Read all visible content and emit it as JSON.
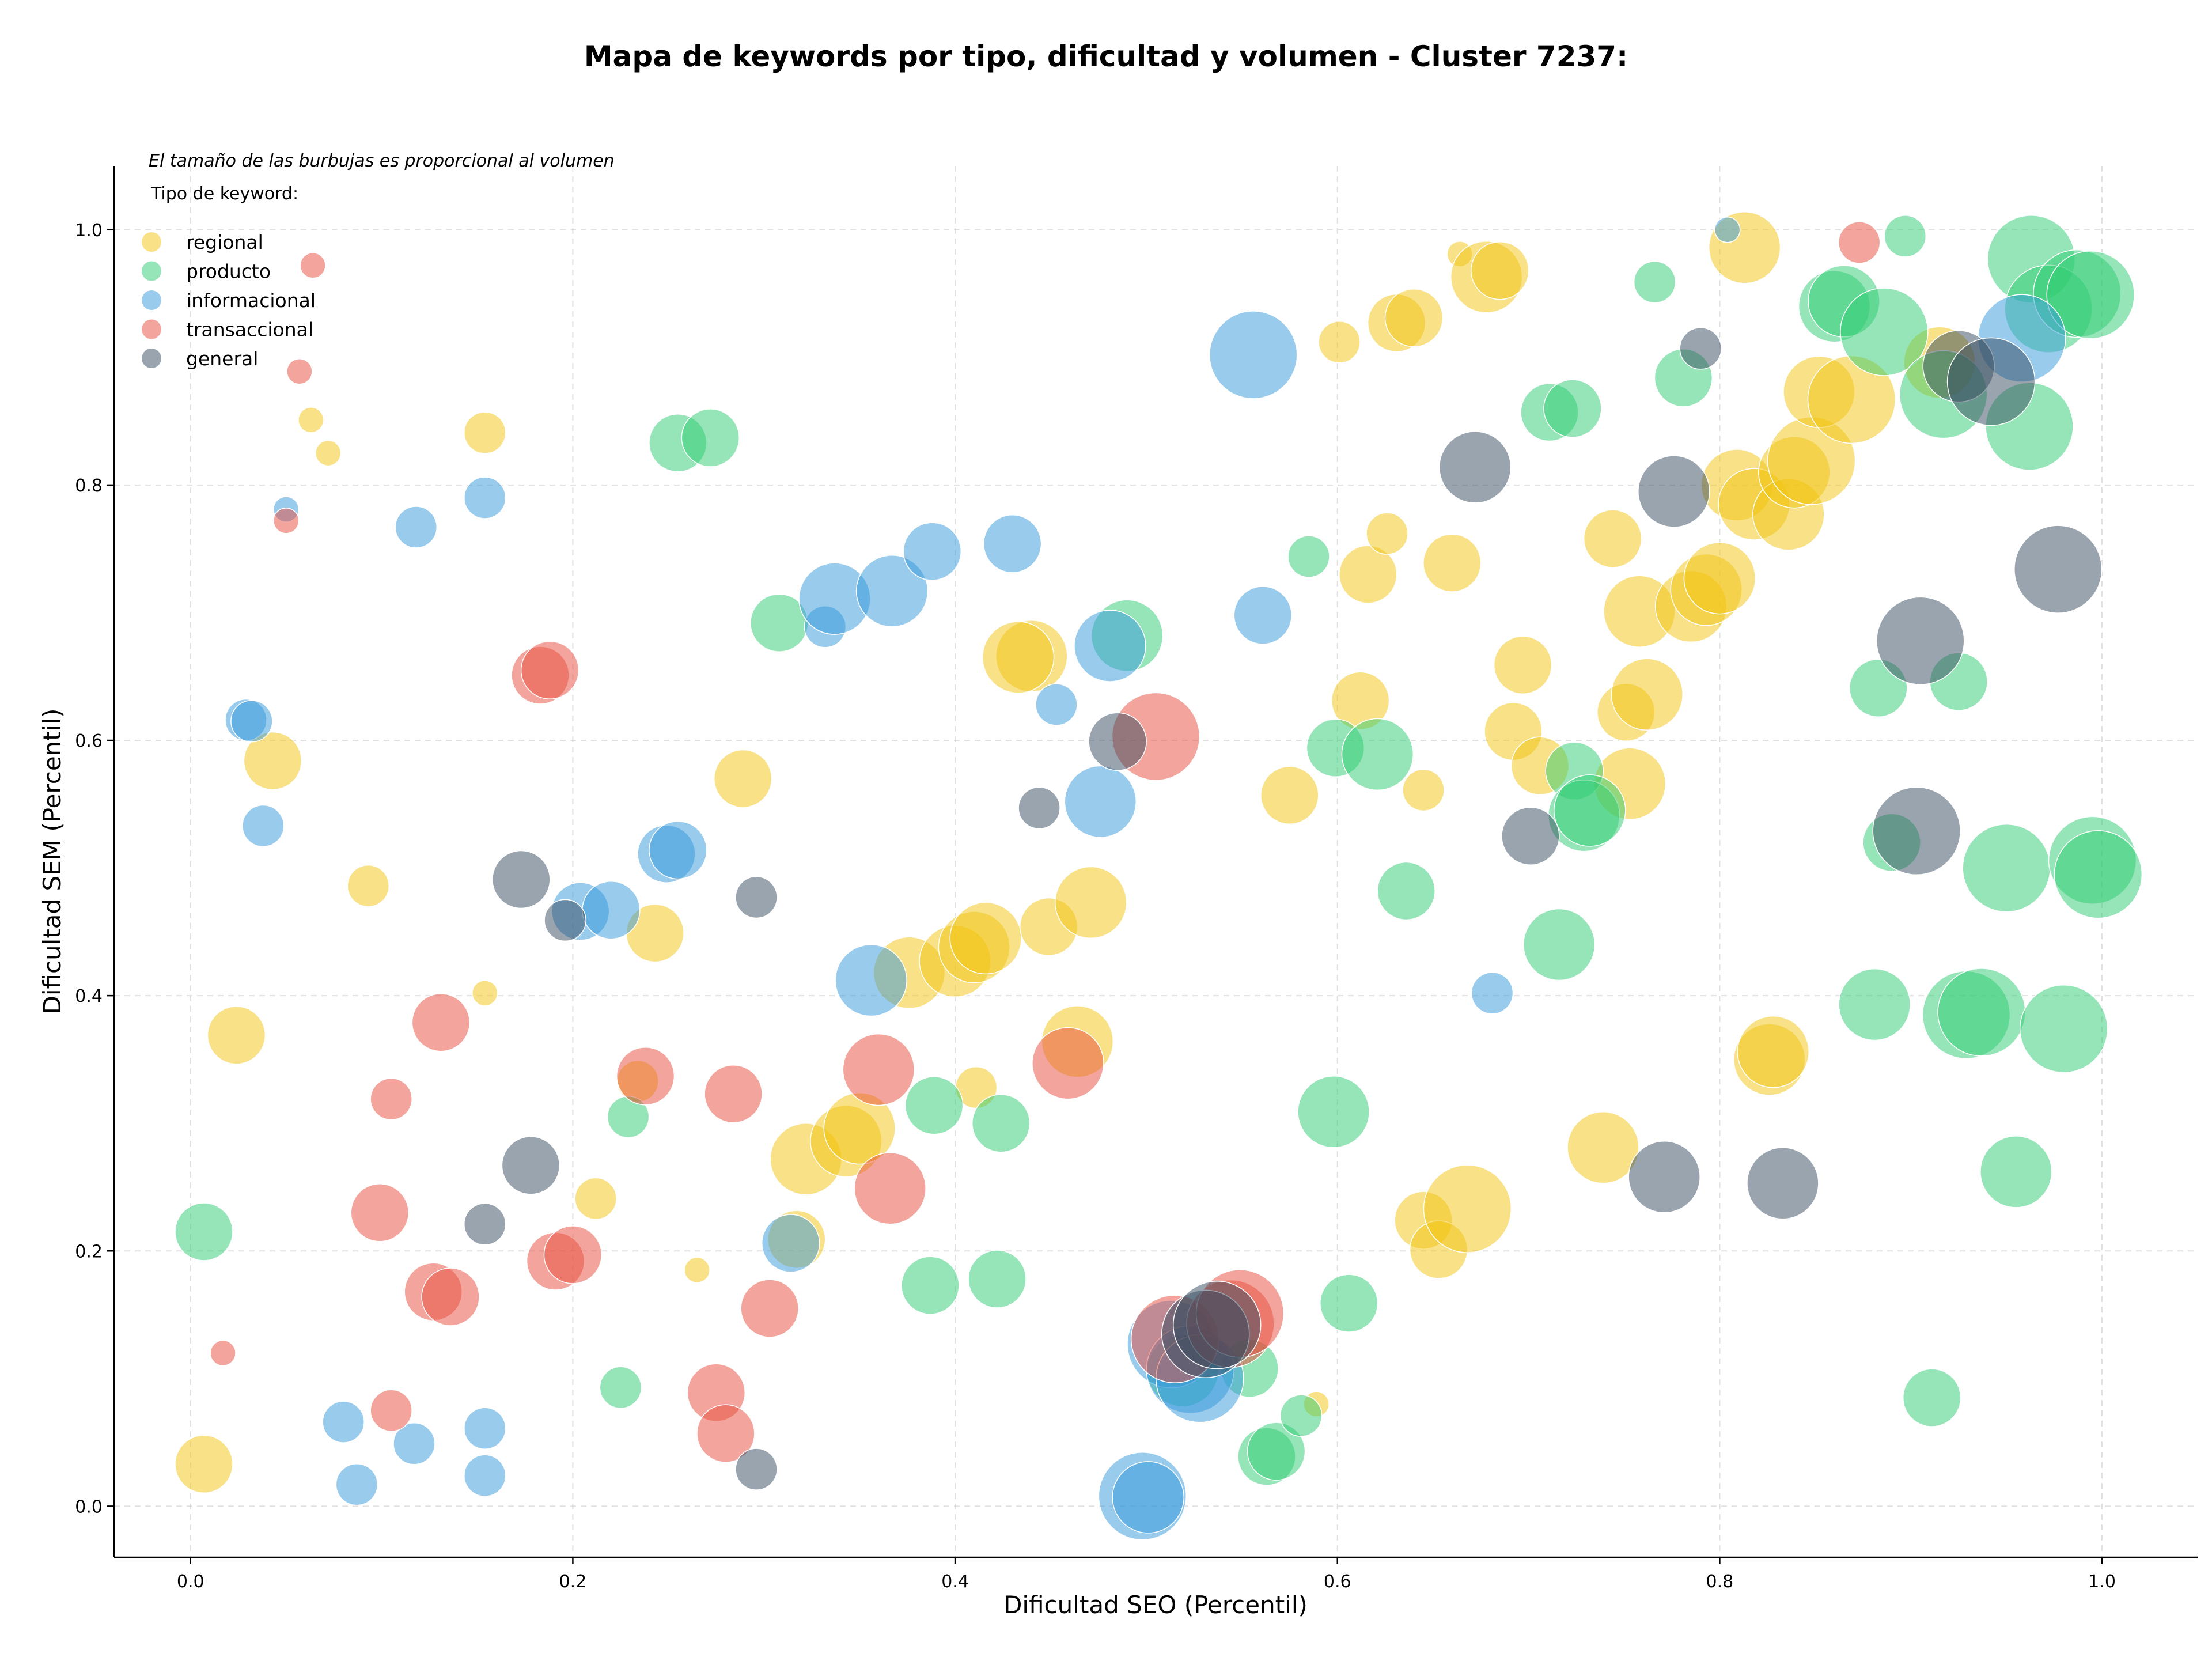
{
  "chart_data": {
    "type": "scatter",
    "title": "Mapa de keywords por tipo, dificultad y volumen - Cluster 7237:",
    "subtitle": "El tamaño de las burbujas es proporcional al volumen",
    "xlabel": "Dificultad SEO (Percentil)",
    "ylabel": "Dificultad SEM (Percentil)",
    "xlim": [
      -0.04,
      1.05
    ],
    "ylim": [
      -0.04,
      1.05
    ],
    "xticks": [
      "0.0",
      "0.2",
      "0.4",
      "0.6",
      "0.8",
      "1.0"
    ],
    "yticks": [
      "0.0",
      "0.2",
      "0.4",
      "0.6",
      "0.8",
      "1.0"
    ],
    "grid": true,
    "legend": {
      "title": "Tipo de keyword:",
      "placement": "top-left"
    },
    "series": [
      {
        "name": "regional",
        "color": "#f1c40f",
        "points": [
          [
            0.007,
            0.033,
            3
          ],
          [
            0.024,
            0.369,
            3
          ],
          [
            0.043,
            0.584,
            3
          ],
          [
            0.063,
            0.851,
            1
          ],
          [
            0.072,
            0.825,
            1
          ],
          [
            0.093,
            0.486,
            2
          ],
          [
            0.154,
            0.841,
            2
          ],
          [
            0.154,
            0.402,
            1
          ],
          [
            0.212,
            0.241,
            2
          ],
          [
            0.234,
            0.333,
            2
          ],
          [
            0.243,
            0.449,
            3
          ],
          [
            0.265,
            0.185,
            1
          ],
          [
            0.289,
            0.57,
            3
          ],
          [
            0.317,
            0.209,
            3
          ],
          [
            0.322,
            0.272,
            4
          ],
          [
            0.343,
            0.286,
            4
          ],
          [
            0.35,
            0.296,
            4
          ],
          [
            0.376,
            0.418,
            4
          ],
          [
            0.4,
            0.427,
            4
          ],
          [
            0.41,
            0.438,
            4
          ],
          [
            0.416,
            0.445,
            4
          ],
          [
            0.411,
            0.328,
            2
          ],
          [
            0.44,
            0.666,
            4
          ],
          [
            0.433,
            0.665,
            4
          ],
          [
            0.449,
            0.454,
            3
          ],
          [
            0.464,
            0.364,
            4
          ],
          [
            0.471,
            0.473,
            4
          ],
          [
            0.575,
            0.557,
            3
          ],
          [
            0.601,
            0.912,
            2
          ],
          [
            0.612,
            0.631,
            3
          ],
          [
            0.616,
            0.73,
            3
          ],
          [
            0.626,
            0.762,
            2
          ],
          [
            0.631,
            0.927,
            3
          ],
          [
            0.64,
            0.931,
            3
          ],
          [
            0.645,
            0.561,
            2
          ],
          [
            0.66,
            0.739,
            3
          ],
          [
            0.664,
            0.981,
            1
          ],
          [
            0.678,
            0.963,
            4
          ],
          [
            0.685,
            0.968,
            3
          ],
          [
            0.692,
            0.607,
            3
          ],
          [
            0.697,
            0.659,
            3
          ],
          [
            0.706,
            0.58,
            3
          ],
          [
            0.645,
            0.224,
            3
          ],
          [
            0.653,
            0.201,
            3
          ],
          [
            0.668,
            0.233,
            5
          ],
          [
            0.739,
            0.281,
            4
          ],
          [
            0.744,
            0.758,
            3
          ],
          [
            0.751,
            0.622,
            3
          ],
          [
            0.753,
            0.566,
            4
          ],
          [
            0.758,
            0.701,
            4
          ],
          [
            0.762,
            0.636,
            4
          ],
          [
            0.785,
            0.705,
            4
          ],
          [
            0.793,
            0.718,
            4
          ],
          [
            0.8,
            0.727,
            4
          ],
          [
            0.809,
            0.8,
            4
          ],
          [
            0.813,
            0.986,
            4
          ],
          [
            0.818,
            0.785,
            4
          ],
          [
            0.826,
            0.35,
            4
          ],
          [
            0.828,
            0.356,
            4
          ],
          [
            0.836,
            0.777,
            4
          ],
          [
            0.839,
            0.81,
            4
          ],
          [
            0.848,
            0.819,
            5
          ],
          [
            0.852,
            0.873,
            4
          ],
          [
            0.869,
            0.867,
            5
          ],
          [
            0.915,
            0.896,
            4
          ],
          [
            0.589,
            0.08,
            1
          ]
        ]
      },
      {
        "name": "producto",
        "color": "#2ecc71",
        "points": [
          [
            0.007,
            0.215,
            3
          ],
          [
            0.225,
            0.093,
            2
          ],
          [
            0.229,
            0.305,
            2
          ],
          [
            0.255,
            0.833,
            3
          ],
          [
            0.272,
            0.837,
            3
          ],
          [
            0.308,
            0.692,
            3
          ],
          [
            0.387,
            0.173,
            3
          ],
          [
            0.389,
            0.314,
            3
          ],
          [
            0.422,
            0.178,
            3
          ],
          [
            0.424,
            0.3,
            3
          ],
          [
            0.49,
            0.682,
            4
          ],
          [
            0.519,
            0.106,
            4
          ],
          [
            0.554,
            0.108,
            3
          ],
          [
            0.563,
            0.039,
            3
          ],
          [
            0.568,
            0.043,
            3
          ],
          [
            0.581,
            0.071,
            2
          ],
          [
            0.585,
            0.744,
            2
          ],
          [
            0.598,
            0.309,
            4
          ],
          [
            0.599,
            0.594,
            3
          ],
          [
            0.606,
            0.159,
            3
          ],
          [
            0.621,
            0.589,
            4
          ],
          [
            0.636,
            0.482,
            3
          ],
          [
            0.711,
            0.857,
            3
          ],
          [
            0.716,
            0.44,
            4
          ],
          [
            0.723,
            0.86,
            3
          ],
          [
            0.724,
            0.576,
            3
          ],
          [
            0.729,
            0.541,
            4
          ],
          [
            0.732,
            0.545,
            4
          ],
          [
            0.766,
            0.959,
            2
          ],
          [
            0.781,
            0.884,
            3
          ],
          [
            0.86,
            0.94,
            4
          ],
          [
            0.865,
            0.944,
            4
          ],
          [
            0.881,
            0.393,
            4
          ],
          [
            0.883,
            0.641,
            3
          ],
          [
            0.886,
            0.92,
            5
          ],
          [
            0.89,
            0.52,
            3
          ],
          [
            0.897,
            0.995,
            2
          ],
          [
            0.911,
            0.085,
            3
          ],
          [
            0.917,
            0.871,
            5
          ],
          [
            0.925,
            0.646,
            3
          ],
          [
            0.929,
            0.385,
            5
          ],
          [
            0.937,
            0.387,
            5
          ],
          [
            0.95,
            0.5,
            5
          ],
          [
            0.955,
            0.262,
            4
          ],
          [
            0.962,
            0.846,
            5
          ],
          [
            0.963,
            0.977,
            5
          ],
          [
            0.972,
            0.938,
            5
          ],
          [
            0.98,
            0.374,
            5
          ],
          [
            0.987,
            0.95,
            5
          ],
          [
            0.994,
            0.949,
            5
          ],
          [
            0.995,
            0.506,
            5
          ],
          [
            0.998,
            0.495,
            5
          ]
        ]
      },
      {
        "name": "informacional",
        "color": "#3498db",
        "points": [
          [
            0.029,
            0.616,
            2
          ],
          [
            0.032,
            0.615,
            2
          ],
          [
            0.038,
            0.533,
            2
          ],
          [
            0.05,
            0.781,
            1
          ],
          [
            0.08,
            0.066,
            2
          ],
          [
            0.087,
            0.017,
            2
          ],
          [
            0.117,
            0.049,
            2
          ],
          [
            0.118,
            0.767,
            2
          ],
          [
            0.154,
            0.79,
            2
          ],
          [
            0.154,
            0.061,
            2
          ],
          [
            0.154,
            0.024,
            2
          ],
          [
            0.204,
            0.466,
            3
          ],
          [
            0.22,
            0.467,
            3
          ],
          [
            0.249,
            0.511,
            3
          ],
          [
            0.255,
            0.514,
            3
          ],
          [
            0.314,
            0.206,
            3
          ],
          [
            0.332,
            0.689,
            2
          ],
          [
            0.337,
            0.711,
            4
          ],
          [
            0.356,
            0.412,
            4
          ],
          [
            0.367,
            0.717,
            4
          ],
          [
            0.388,
            0.748,
            3
          ],
          [
            0.43,
            0.754,
            3
          ],
          [
            0.453,
            0.628,
            2
          ],
          [
            0.481,
            0.674,
            4
          ],
          [
            0.476,
            0.552,
            4
          ],
          [
            0.498,
            0.008,
            5
          ],
          [
            0.501,
            0.007,
            4
          ],
          [
            0.513,
            0.127,
            5
          ],
          [
            0.523,
            0.107,
            5
          ],
          [
            0.528,
            0.1,
            5
          ],
          [
            0.556,
            0.902,
            5
          ],
          [
            0.561,
            0.698,
            3
          ],
          [
            0.681,
            0.402,
            2
          ],
          [
            0.804,
            1.0,
            1
          ],
          [
            0.958,
            0.915,
            5
          ]
        ]
      },
      {
        "name": "transaccional",
        "color": "#e74c3c",
        "points": [
          [
            0.017,
            0.12,
            1
          ],
          [
            0.05,
            0.772,
            1
          ],
          [
            0.057,
            0.889,
            1
          ],
          [
            0.064,
            0.972,
            1
          ],
          [
            0.099,
            0.23,
            3
          ],
          [
            0.105,
            0.075,
            2
          ],
          [
            0.105,
            0.319,
            2
          ],
          [
            0.127,
            0.168,
            3
          ],
          [
            0.131,
            0.379,
            3
          ],
          [
            0.136,
            0.164,
            3
          ],
          [
            0.183,
            0.651,
            3
          ],
          [
            0.188,
            0.655,
            3
          ],
          [
            0.191,
            0.192,
            3
          ],
          [
            0.2,
            0.197,
            3
          ],
          [
            0.238,
            0.337,
            3
          ],
          [
            0.275,
            0.089,
            3
          ],
          [
            0.28,
            0.057,
            3
          ],
          [
            0.284,
            0.323,
            3
          ],
          [
            0.303,
            0.155,
            3
          ],
          [
            0.36,
            0.342,
            4
          ],
          [
            0.366,
            0.249,
            4
          ],
          [
            0.459,
            0.347,
            4
          ],
          [
            0.505,
            0.603,
            5
          ],
          [
            0.515,
            0.131,
            5
          ],
          [
            0.544,
            0.143,
            5
          ],
          [
            0.549,
            0.151,
            5
          ],
          [
            0.873,
            0.99,
            2
          ]
        ]
      },
      {
        "name": "general",
        "color": "#34495e",
        "points": [
          [
            0.154,
            0.221,
            2
          ],
          [
            0.173,
            0.491,
            3
          ],
          [
            0.178,
            0.267,
            3
          ],
          [
            0.196,
            0.459,
            2
          ],
          [
            0.296,
            0.477,
            2
          ],
          [
            0.296,
            0.029,
            2
          ],
          [
            0.444,
            0.547,
            2
          ],
          [
            0.485,
            0.599,
            3
          ],
          [
            0.531,
            0.135,
            5
          ],
          [
            0.537,
            0.142,
            5
          ],
          [
            0.672,
            0.814,
            4
          ],
          [
            0.701,
            0.525,
            3
          ],
          [
            0.771,
            0.258,
            4
          ],
          [
            0.776,
            0.795,
            4
          ],
          [
            0.79,
            0.907,
            2
          ],
          [
            0.833,
            0.253,
            4
          ],
          [
            0.903,
            0.529,
            5
          ],
          [
            0.905,
            0.678,
            5
          ],
          [
            0.925,
            0.893,
            4
          ],
          [
            0.942,
            0.881,
            5
          ],
          [
            0.977,
            0.734,
            5
          ]
        ]
      }
    ]
  }
}
